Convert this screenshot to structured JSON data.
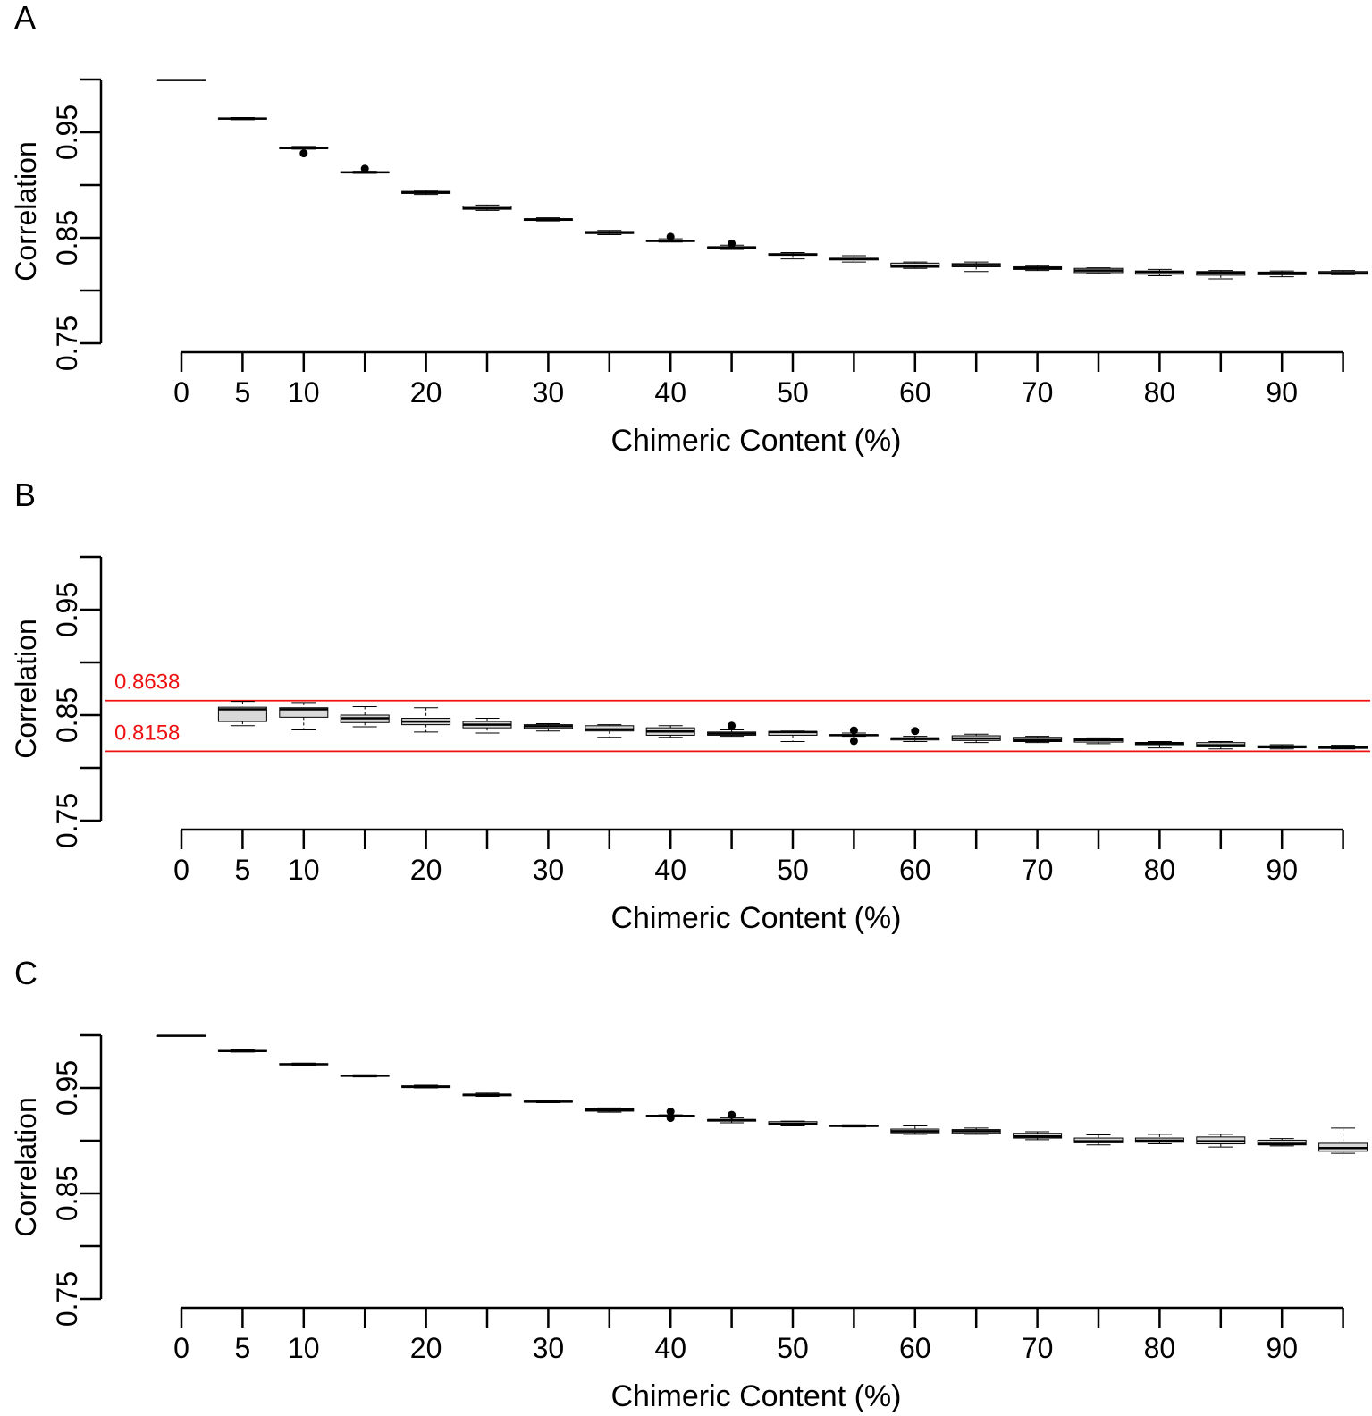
{
  "chart_data": [
    {
      "type": "box",
      "panel_label": "A",
      "ylabel": "Correlation",
      "xlabel": "Chimeric Content (%)",
      "ylim": [
        0.75,
        1.0
      ],
      "y_ticks": [
        0.75,
        0.85,
        0.95
      ],
      "y_tick_labels": [
        "0.75",
        "0.85",
        "0.95"
      ],
      "x_ticks": [
        0,
        5,
        10,
        15,
        20,
        25,
        30,
        35,
        40,
        45,
        50,
        55,
        60,
        65,
        70,
        75,
        80,
        85,
        90,
        95
      ],
      "x_tick_labels": [
        "0",
        "5",
        "10",
        "",
        "20",
        "",
        "30",
        "",
        "40",
        "",
        "50",
        "",
        "60",
        "",
        "70",
        "",
        "80",
        "",
        "90",
        ""
      ],
      "reference_lines": [],
      "boxes": [
        {
          "x": 0,
          "min": 0.9995,
          "q1": 0.9995,
          "median": 0.9995,
          "q3": 0.9995,
          "max": 0.9995,
          "outliers": []
        },
        {
          "x": 5,
          "min": 0.962,
          "q1": 0.9625,
          "median": 0.963,
          "q3": 0.9635,
          "max": 0.964,
          "outliers": []
        },
        {
          "x": 10,
          "min": 0.934,
          "q1": 0.9345,
          "median": 0.935,
          "q3": 0.9353,
          "max": 0.9365,
          "outliers": [
            0.93
          ]
        },
        {
          "x": 15,
          "min": 0.911,
          "q1": 0.9115,
          "median": 0.912,
          "q3": 0.9125,
          "max": 0.913,
          "outliers": [
            0.9155
          ]
        },
        {
          "x": 20,
          "min": 0.891,
          "q1": 0.892,
          "median": 0.893,
          "q3": 0.894,
          "max": 0.895,
          "outliers": []
        },
        {
          "x": 25,
          "min": 0.876,
          "q1": 0.877,
          "median": 0.878,
          "q3": 0.88,
          "max": 0.881,
          "outliers": []
        },
        {
          "x": 30,
          "min": 0.866,
          "q1": 0.8665,
          "median": 0.8675,
          "q3": 0.868,
          "max": 0.869,
          "outliers": []
        },
        {
          "x": 35,
          "min": 0.853,
          "q1": 0.854,
          "median": 0.855,
          "q3": 0.856,
          "max": 0.857,
          "outliers": []
        },
        {
          "x": 40,
          "min": 0.846,
          "q1": 0.8465,
          "median": 0.847,
          "q3": 0.8475,
          "max": 0.849,
          "outliers": [
            0.851
          ]
        },
        {
          "x": 45,
          "min": 0.839,
          "q1": 0.84,
          "median": 0.841,
          "q3": 0.8415,
          "max": 0.843,
          "outliers": [
            0.8445
          ]
        },
        {
          "x": 50,
          "min": 0.83,
          "q1": 0.8335,
          "median": 0.834,
          "q3": 0.835,
          "max": 0.836,
          "outliers": []
        },
        {
          "x": 55,
          "min": 0.827,
          "q1": 0.829,
          "median": 0.83,
          "q3": 0.8305,
          "max": 0.833,
          "outliers": []
        },
        {
          "x": 60,
          "min": 0.821,
          "q1": 0.822,
          "median": 0.823,
          "q3": 0.826,
          "max": 0.827,
          "outliers": []
        },
        {
          "x": 65,
          "min": 0.818,
          "q1": 0.8225,
          "median": 0.824,
          "q3": 0.8255,
          "max": 0.827,
          "outliers": []
        },
        {
          "x": 70,
          "min": 0.819,
          "q1": 0.82,
          "median": 0.821,
          "q3": 0.8225,
          "max": 0.8235,
          "outliers": []
        },
        {
          "x": 75,
          "min": 0.816,
          "q1": 0.817,
          "median": 0.819,
          "q3": 0.821,
          "max": 0.8215,
          "outliers": []
        },
        {
          "x": 80,
          "min": 0.814,
          "q1": 0.8155,
          "median": 0.8175,
          "q3": 0.8185,
          "max": 0.82,
          "outliers": []
        },
        {
          "x": 85,
          "min": 0.811,
          "q1": 0.8145,
          "median": 0.817,
          "q3": 0.818,
          "max": 0.819,
          "outliers": []
        },
        {
          "x": 90,
          "min": 0.813,
          "q1": 0.815,
          "median": 0.8165,
          "q3": 0.8175,
          "max": 0.8185,
          "outliers": []
        },
        {
          "x": 95,
          "min": 0.815,
          "q1": 0.8155,
          "median": 0.8165,
          "q3": 0.818,
          "max": 0.819,
          "outliers": []
        }
      ]
    },
    {
      "type": "box",
      "panel_label": "B",
      "ylabel": "Correlation",
      "xlabel": "Chimeric Content (%)",
      "ylim": [
        0.75,
        1.0
      ],
      "y_ticks": [
        0.75,
        0.85,
        0.95
      ],
      "y_tick_labels": [
        "0.75",
        "0.85",
        "0.95"
      ],
      "x_ticks": [
        0,
        5,
        10,
        15,
        20,
        25,
        30,
        35,
        40,
        45,
        50,
        55,
        60,
        65,
        70,
        75,
        80,
        85,
        90,
        95
      ],
      "x_tick_labels": [
        "0",
        "5",
        "10",
        "",
        "20",
        "",
        "30",
        "",
        "40",
        "",
        "50",
        "",
        "60",
        "",
        "70",
        "",
        "80",
        "",
        "90",
        ""
      ],
      "reference_lines": [
        {
          "y": 0.8638,
          "label": "0.8638",
          "color": "#ee1111"
        },
        {
          "y": 0.8158,
          "label": "0.8158",
          "color": "#ee1111"
        }
      ],
      "boxes": [
        {
          "x": 5,
          "min": 0.84,
          "q1": 0.844,
          "median": 0.8555,
          "q3": 0.8575,
          "max": 0.863,
          "outliers": []
        },
        {
          "x": 10,
          "min": 0.836,
          "q1": 0.848,
          "median": 0.8555,
          "q3": 0.857,
          "max": 0.862,
          "outliers": []
        },
        {
          "x": 15,
          "min": 0.839,
          "q1": 0.843,
          "median": 0.847,
          "q3": 0.85,
          "max": 0.858,
          "outliers": []
        },
        {
          "x": 20,
          "min": 0.834,
          "q1": 0.841,
          "median": 0.844,
          "q3": 0.847,
          "max": 0.857,
          "outliers": []
        },
        {
          "x": 25,
          "min": 0.833,
          "q1": 0.838,
          "median": 0.841,
          "q3": 0.844,
          "max": 0.847,
          "outliers": []
        },
        {
          "x": 30,
          "min": 0.835,
          "q1": 0.8375,
          "median": 0.8395,
          "q3": 0.841,
          "max": 0.842,
          "outliers": []
        },
        {
          "x": 35,
          "min": 0.829,
          "q1": 0.835,
          "median": 0.8365,
          "q3": 0.84,
          "max": 0.841,
          "outliers": []
        },
        {
          "x": 40,
          "min": 0.829,
          "q1": 0.831,
          "median": 0.8345,
          "q3": 0.838,
          "max": 0.84,
          "outliers": []
        },
        {
          "x": 45,
          "min": 0.83,
          "q1": 0.831,
          "median": 0.8325,
          "q3": 0.834,
          "max": 0.836,
          "outliers": [
            0.84
          ]
        },
        {
          "x": 50,
          "min": 0.825,
          "q1": 0.831,
          "median": 0.834,
          "q3": 0.8345,
          "max": 0.835,
          "outliers": []
        },
        {
          "x": 55,
          "min": 0.83,
          "q1": 0.8305,
          "median": 0.831,
          "q3": 0.8315,
          "max": 0.833,
          "outliers": [
            0.8355,
            0.8255
          ]
        },
        {
          "x": 60,
          "min": 0.825,
          "q1": 0.8265,
          "median": 0.828,
          "q3": 0.8285,
          "max": 0.83,
          "outliers": [
            0.835
          ]
        },
        {
          "x": 65,
          "min": 0.824,
          "q1": 0.826,
          "median": 0.828,
          "q3": 0.8305,
          "max": 0.832,
          "outliers": []
        },
        {
          "x": 70,
          "min": 0.824,
          "q1": 0.825,
          "median": 0.8265,
          "q3": 0.829,
          "max": 0.83,
          "outliers": []
        },
        {
          "x": 75,
          "min": 0.823,
          "q1": 0.8245,
          "median": 0.8265,
          "q3": 0.828,
          "max": 0.8285,
          "outliers": []
        },
        {
          "x": 80,
          "min": 0.819,
          "q1": 0.822,
          "median": 0.8235,
          "q3": 0.824,
          "max": 0.825,
          "outliers": []
        },
        {
          "x": 85,
          "min": 0.818,
          "q1": 0.82,
          "median": 0.8215,
          "q3": 0.824,
          "max": 0.825,
          "outliers": []
        },
        {
          "x": 90,
          "min": 0.818,
          "q1": 0.819,
          "median": 0.82,
          "q3": 0.821,
          "max": 0.822,
          "outliers": []
        },
        {
          "x": 95,
          "min": 0.818,
          "q1": 0.8185,
          "median": 0.8195,
          "q3": 0.8205,
          "max": 0.8215,
          "outliers": []
        }
      ]
    },
    {
      "type": "box",
      "panel_label": "C",
      "ylabel": "Correlation",
      "xlabel": "Chimeric Content (%)",
      "ylim": [
        0.75,
        1.0
      ],
      "y_ticks": [
        0.75,
        0.85,
        0.95
      ],
      "y_tick_labels": [
        "0.75",
        "0.85",
        "0.95"
      ],
      "x_ticks": [
        0,
        5,
        10,
        15,
        20,
        25,
        30,
        35,
        40,
        45,
        50,
        55,
        60,
        65,
        70,
        75,
        80,
        85,
        90,
        95
      ],
      "x_tick_labels": [
        "0",
        "5",
        "10",
        "",
        "20",
        "",
        "30",
        "",
        "40",
        "",
        "50",
        "",
        "60",
        "",
        "70",
        "",
        "80",
        "",
        "90",
        ""
      ],
      "reference_lines": [],
      "boxes": [
        {
          "x": 0,
          "min": 0.9995,
          "q1": 0.9995,
          "median": 0.9995,
          "q3": 0.9995,
          "max": 0.9995,
          "outliers": []
        },
        {
          "x": 5,
          "min": 0.984,
          "q1": 0.9845,
          "median": 0.985,
          "q3": 0.9855,
          "max": 0.986,
          "outliers": []
        },
        {
          "x": 10,
          "min": 0.9715,
          "q1": 0.972,
          "median": 0.9725,
          "q3": 0.973,
          "max": 0.9735,
          "outliers": []
        },
        {
          "x": 15,
          "min": 0.9605,
          "q1": 0.961,
          "median": 0.9615,
          "q3": 0.962,
          "max": 0.9625,
          "outliers": []
        },
        {
          "x": 20,
          "min": 0.95,
          "q1": 0.9505,
          "median": 0.951,
          "q3": 0.952,
          "max": 0.9525,
          "outliers": []
        },
        {
          "x": 25,
          "min": 0.942,
          "q1": 0.9425,
          "median": 0.9435,
          "q3": 0.944,
          "max": 0.945,
          "outliers": []
        },
        {
          "x": 30,
          "min": 0.936,
          "q1": 0.9365,
          "median": 0.937,
          "q3": 0.9375,
          "max": 0.938,
          "outliers": []
        },
        {
          "x": 35,
          "min": 0.927,
          "q1": 0.928,
          "median": 0.9295,
          "q3": 0.9305,
          "max": 0.931,
          "outliers": []
        },
        {
          "x": 40,
          "min": 0.9225,
          "q1": 0.923,
          "median": 0.9235,
          "q3": 0.924,
          "max": 0.9245,
          "outliers": [
            0.9275,
            0.9215
          ]
        },
        {
          "x": 45,
          "min": 0.917,
          "q1": 0.9185,
          "median": 0.9195,
          "q3": 0.92,
          "max": 0.9215,
          "outliers": [
            0.9245
          ]
        },
        {
          "x": 50,
          "min": 0.914,
          "q1": 0.915,
          "median": 0.916,
          "q3": 0.918,
          "max": 0.9185,
          "outliers": []
        },
        {
          "x": 55,
          "min": 0.913,
          "q1": 0.9135,
          "median": 0.914,
          "q3": 0.9145,
          "max": 0.915,
          "outliers": []
        },
        {
          "x": 60,
          "min": 0.906,
          "q1": 0.9075,
          "median": 0.909,
          "q3": 0.911,
          "max": 0.914,
          "outliers": []
        },
        {
          "x": 65,
          "min": 0.906,
          "q1": 0.907,
          "median": 0.909,
          "q3": 0.9105,
          "max": 0.912,
          "outliers": []
        },
        {
          "x": 70,
          "min": 0.901,
          "q1": 0.9025,
          "median": 0.904,
          "q3": 0.907,
          "max": 0.9085,
          "outliers": []
        },
        {
          "x": 75,
          "min": 0.896,
          "q1": 0.898,
          "median": 0.8995,
          "q3": 0.9025,
          "max": 0.9055,
          "outliers": []
        },
        {
          "x": 80,
          "min": 0.897,
          "q1": 0.8985,
          "median": 0.9,
          "q3": 0.9025,
          "max": 0.906,
          "outliers": []
        },
        {
          "x": 85,
          "min": 0.894,
          "q1": 0.897,
          "median": 0.8995,
          "q3": 0.9035,
          "max": 0.906,
          "outliers": []
        },
        {
          "x": 90,
          "min": 0.895,
          "q1": 0.896,
          "median": 0.897,
          "q3": 0.9005,
          "max": 0.902,
          "outliers": []
        },
        {
          "x": 95,
          "min": 0.888,
          "q1": 0.89,
          "median": 0.893,
          "q3": 0.8975,
          "max": 0.912,
          "outliers": []
        }
      ]
    }
  ]
}
